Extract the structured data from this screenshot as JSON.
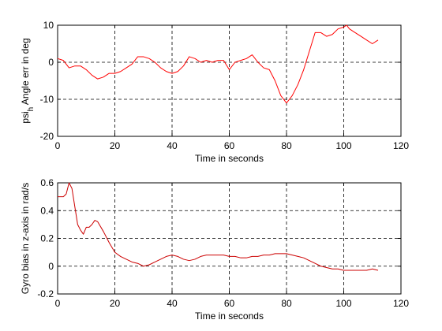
{
  "chart_data": [
    {
      "type": "line",
      "title": "",
      "xlabel": "Time in seconds",
      "ylabel": "psi",
      "ylabel_subscript": "h",
      "ylabel_rest": " Angle err in deg",
      "xlim": [
        0,
        120
      ],
      "ylim": [
        -20,
        10
      ],
      "xticks": [
        "0",
        "20",
        "40",
        "60",
        "80",
        "100",
        "120"
      ],
      "yticks": [
        "-20",
        "-10",
        "0",
        "10"
      ],
      "grid": true,
      "color": "#ff0000",
      "series": [
        {
          "x": [
            0,
            2,
            4,
            6,
            8,
            10,
            12,
            14,
            16,
            18,
            20,
            22,
            24,
            26,
            28,
            30,
            32,
            34,
            36,
            38,
            40,
            42,
            44,
            46,
            48,
            50,
            52,
            54,
            56,
            58,
            60,
            62,
            64,
            66,
            68,
            70,
            72,
            74,
            76,
            78,
            80,
            81,
            82,
            84,
            86,
            88,
            90,
            92,
            94,
            96,
            98,
            100,
            101,
            102,
            104,
            106,
            108,
            110,
            112
          ],
          "y": [
            1,
            0.5,
            -1.5,
            -1,
            -1,
            -2,
            -3.5,
            -4.5,
            -4,
            -3,
            -3,
            -2.5,
            -1.5,
            -0.5,
            1.5,
            1.5,
            1,
            0,
            -1.5,
            -2.5,
            -3,
            -2.5,
            -1,
            1.5,
            1,
            0,
            0.5,
            0,
            0.5,
            0.5,
            -2,
            0,
            0.5,
            1,
            2,
            0,
            -1.5,
            -2,
            -5,
            -9,
            -11,
            -10,
            -9,
            -6,
            -2,
            3,
            8,
            8,
            7,
            7.5,
            9,
            9.5,
            10,
            9,
            8,
            7,
            6,
            5,
            6
          ]
        }
      ]
    },
    {
      "type": "line",
      "title": "",
      "xlabel": "Time in seconds",
      "ylabel": "Gyro bias in z-axis in rad/s",
      "xlim": [
        0,
        120
      ],
      "ylim": [
        -0.2,
        0.6
      ],
      "xticks": [
        "0",
        "20",
        "40",
        "60",
        "80",
        "100",
        "120"
      ],
      "yticks": [
        "-0.2",
        "0",
        "0.2",
        "0.4",
        "0.6"
      ],
      "grid": true,
      "color": "#cc0000",
      "series": [
        {
          "x": [
            0,
            1,
            2,
            3,
            4,
            5,
            6,
            7,
            8,
            9,
            10,
            11,
            12,
            13,
            14,
            16,
            18,
            20,
            22,
            24,
            26,
            28,
            30,
            32,
            34,
            36,
            38,
            40,
            42,
            44,
            46,
            48,
            50,
            52,
            54,
            56,
            58,
            60,
            62,
            64,
            66,
            68,
            70,
            72,
            74,
            76,
            78,
            80,
            82,
            84,
            86,
            88,
            90,
            92,
            94,
            96,
            98,
            100,
            102,
            104,
            106,
            108,
            110,
            112
          ],
          "y": [
            0.5,
            0.5,
            0.5,
            0.52,
            0.6,
            0.56,
            0.43,
            0.3,
            0.26,
            0.23,
            0.28,
            0.28,
            0.3,
            0.33,
            0.32,
            0.25,
            0.17,
            0.1,
            0.07,
            0.05,
            0.03,
            0.02,
            0.0,
            0.01,
            0.03,
            0.05,
            0.07,
            0.08,
            0.07,
            0.05,
            0.04,
            0.05,
            0.07,
            0.08,
            0.08,
            0.08,
            0.08,
            0.07,
            0.07,
            0.06,
            0.06,
            0.07,
            0.07,
            0.08,
            0.08,
            0.09,
            0.09,
            0.09,
            0.08,
            0.07,
            0.06,
            0.04,
            0.02,
            0.0,
            -0.01,
            -0.02,
            -0.02,
            -0.03,
            -0.03,
            -0.03,
            -0.03,
            -0.03,
            -0.02,
            -0.03
          ]
        }
      ]
    }
  ]
}
